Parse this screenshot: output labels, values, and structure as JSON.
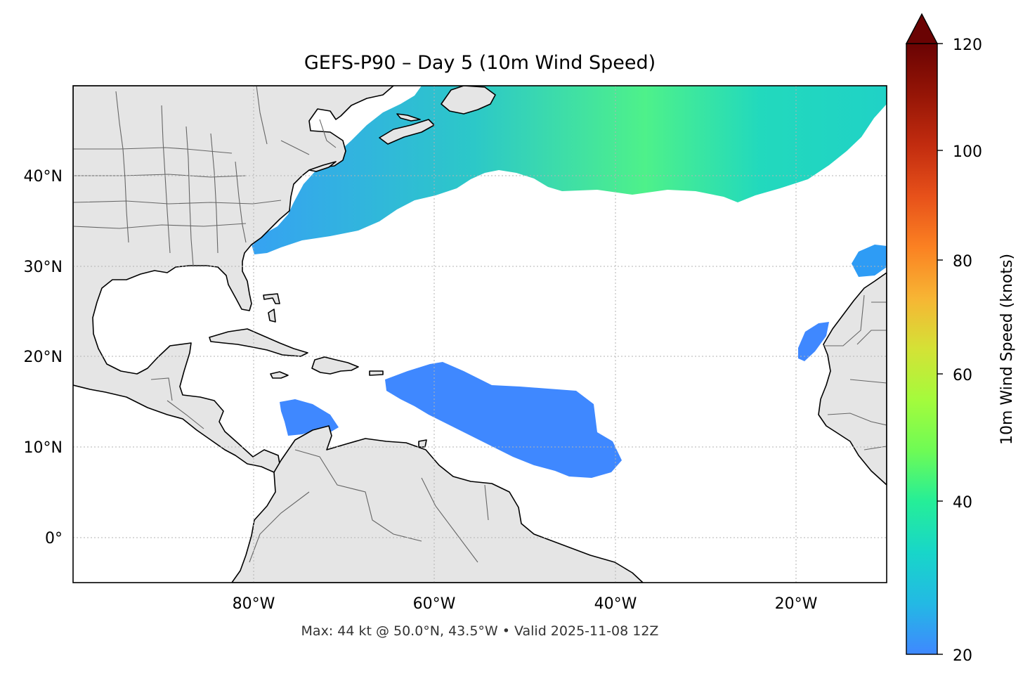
{
  "title": "GEFS-P90 – Day 5 (10m Wind Speed)",
  "caption": "Max: 44 kt @ 50.0°N, 43.5°W • Valid 2025-11-08 12Z",
  "map": {
    "lon_range": [
      -100,
      -10
    ],
    "lat_range": [
      -5,
      50
    ],
    "x_ticks": [
      "80°W",
      "60°W",
      "40°W",
      "20°W"
    ],
    "y_ticks": [
      "40°N",
      "30°N",
      "20°N",
      "10°N",
      "0°"
    ],
    "gridlines": true,
    "land_color": "#e5e5e5",
    "ocean_color": "#ffffff"
  },
  "colorbar": {
    "label": "10m Wind Speed (knots)",
    "ticks": [
      "20",
      "40",
      "60",
      "80",
      "100",
      "120"
    ],
    "range": [
      20,
      120
    ],
    "extend": "max",
    "colors": [
      "#3f88ff",
      "#23b9e4",
      "#18d6c9",
      "#25ee98",
      "#6efb55",
      "#a4fb3c",
      "#d4e236",
      "#f7b534",
      "#fb8122",
      "#e7511a",
      "#c22c0f",
      "#951506",
      "#6a0303"
    ]
  },
  "wind": {
    "max_kt": 44,
    "max_location": "50.0°N, 43.5°W",
    "valid": "2025-11-08 12Z"
  }
}
